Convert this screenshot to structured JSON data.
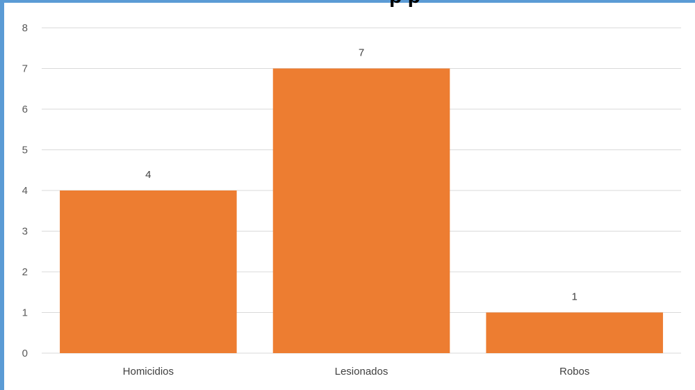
{
  "chart_data": {
    "type": "bar",
    "title": "",
    "title_fragment": "p p",
    "categories": [
      "Homicidios",
      "Lesionados",
      "Robos"
    ],
    "values": [
      4,
      7,
      1
    ],
    "data_labels": [
      "4",
      "7",
      "1"
    ],
    "ylim": [
      0,
      8
    ],
    "yticks": [
      0,
      1,
      2,
      3,
      4,
      5,
      6,
      7,
      8
    ],
    "xlabel": "",
    "ylabel": "",
    "grid": true,
    "legend": "none",
    "colors": {
      "bar": "#ed7d31",
      "grid": "#d9d9d9",
      "frame": "#5b9bd5"
    }
  }
}
